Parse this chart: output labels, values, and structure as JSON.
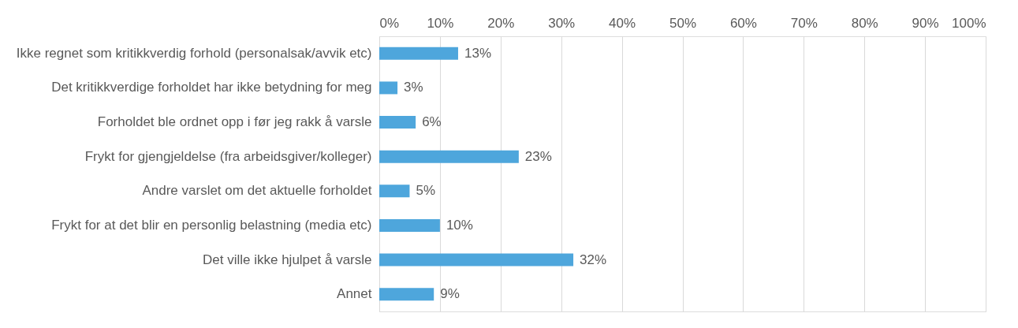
{
  "chart_data": {
    "type": "bar",
    "orientation": "horizontal",
    "categories": [
      "Ikke regnet som kritikkverdig forhold (personalsak/avvik etc)",
      "Det kritikkverdige forholdet har ikke betydning for meg",
      "Forholdet ble ordnet opp i før jeg rakk å varsle",
      "Frykt for gjengjeldelse (fra arbeidsgiver/kolleger)",
      "Andre varslet om det aktuelle forholdet",
      "Frykt for at det blir en personlig belastning (media etc)",
      "Det ville ikke hjulpet å varsle",
      "Annet"
    ],
    "values": [
      13,
      3,
      6,
      23,
      5,
      10,
      32,
      9
    ],
    "value_labels": [
      "13%",
      "3%",
      "6%",
      "23%",
      "5%",
      "10%",
      "32%",
      "9%"
    ],
    "color": "#4ea6dc",
    "xlim": [
      0,
      100
    ],
    "xticks": [
      {
        "value": 0,
        "label": "0%"
      },
      {
        "value": 10,
        "label": "10%"
      },
      {
        "value": 20,
        "label": "20%"
      },
      {
        "value": 30,
        "label": "30%"
      },
      {
        "value": 40,
        "label": "40%"
      },
      {
        "value": 50,
        "label": "50%"
      },
      {
        "value": 60,
        "label": "60%"
      },
      {
        "value": 70,
        "label": "70%"
      },
      {
        "value": 80,
        "label": "80%"
      },
      {
        "value": 90,
        "label": "90%"
      },
      {
        "value": 100,
        "label": "100%"
      }
    ],
    "grid": "x"
  }
}
